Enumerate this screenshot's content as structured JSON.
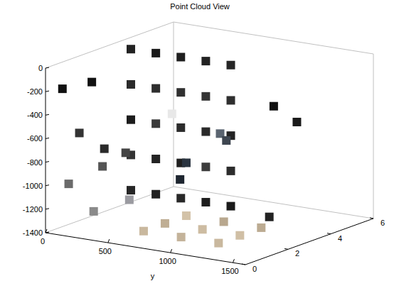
{
  "chart_data": {
    "type": "scatter3",
    "title": "Point Cloud View",
    "ylabel": "y",
    "xlim": [
      0,
      6
    ],
    "xticks": [
      0,
      2,
      4,
      6
    ],
    "ylim": [
      0,
      1600
    ],
    "yticks": [
      0,
      500,
      1000,
      1500
    ],
    "zlim": [
      -1400,
      0
    ],
    "zticks": [
      0,
      -200,
      -400,
      -600,
      -800,
      -1000,
      -1200,
      -1400
    ],
    "x": [
      4,
      4,
      4,
      4,
      4,
      4,
      4,
      4,
      4,
      4,
      4,
      4,
      4,
      4,
      4,
      4,
      4,
      4,
      4,
      4,
      4,
      4,
      4,
      4,
      4,
      0.5,
      1.5,
      2.5,
      0.5,
      1.5,
      2.5,
      0.5,
      1.5,
      2.5,
      1,
      1,
      1.5,
      0.5,
      2,
      0.5,
      1,
      0.5,
      1,
      3,
      3,
      3.5,
      3.5,
      2.5,
      3,
      2,
      2.5,
      2.5
    ],
    "y": [
      0,
      0,
      0,
      0,
      0,
      200,
      200,
      200,
      200,
      200,
      400,
      400,
      400,
      400,
      400,
      600,
      600,
      600,
      600,
      600,
      800,
      800,
      800,
      800,
      800,
      700,
      700,
      700,
      1000,
      1000,
      1000,
      1300,
      1300,
      1300,
      100,
      300,
      200,
      100,
      300,
      300,
      500,
      50,
      200,
      450,
      500,
      800,
      850,
      1400,
      1500,
      1450,
      650,
      700
    ],
    "z": [
      -100,
      -400,
      -700,
      -1000,
      -1300,
      -100,
      -400,
      -700,
      -1000,
      -1300,
      -100,
      -400,
      -700,
      -1000,
      -1300,
      -100,
      -400,
      -700,
      -1000,
      -1300,
      -100,
      -400,
      -700,
      -1000,
      -1300,
      -1300,
      -1300,
      -1300,
      -1300,
      -1300,
      -1300,
      -1300,
      -1300,
      -1300,
      -600,
      -700,
      -900,
      -1000,
      -800,
      -1200,
      -1100,
      -200,
      -150,
      -550,
      -500,
      -650,
      -700,
      -250,
      -400,
      -1150,
      -1000,
      -850
    ],
    "colors": [
      "#222222",
      "#2a2a2a",
      "#1c1c1c",
      "#333333",
      "#262626",
      "#1a1a1a",
      "#2e2e2e",
      "#3a3a3a",
      "#242424",
      "#202020",
      "#1e1e1e",
      "#303030",
      "#2b2b2b",
      "#1f1f1f",
      "#282828",
      "#222222",
      "#353535",
      "#2a2a2a",
      "#3c3c3c",
      "#1d1d1d",
      "#262626",
      "#2f2f2f",
      "#232323",
      "#2c2c2c",
      "#1b1b1b",
      "#c9b89e",
      "#bfae94",
      "#d3c2a8",
      "#c4b39a",
      "#cdbca2",
      "#b8a78e",
      "#c9b89e",
      "#d0bfa5",
      "#bcab92",
      "#333333",
      "#2a2a2a",
      "#555555",
      "#6b6b6b",
      "#444444",
      "#8a8a8a",
      "#9a9aa0",
      "#111111",
      "#111111",
      "#ffffff",
      "#e8e8e8",
      "#5a6470",
      "#3e4650",
      "#111111",
      "#1a1a1a",
      "#222222",
      "#1e2630",
      "#2a3440"
    ]
  }
}
